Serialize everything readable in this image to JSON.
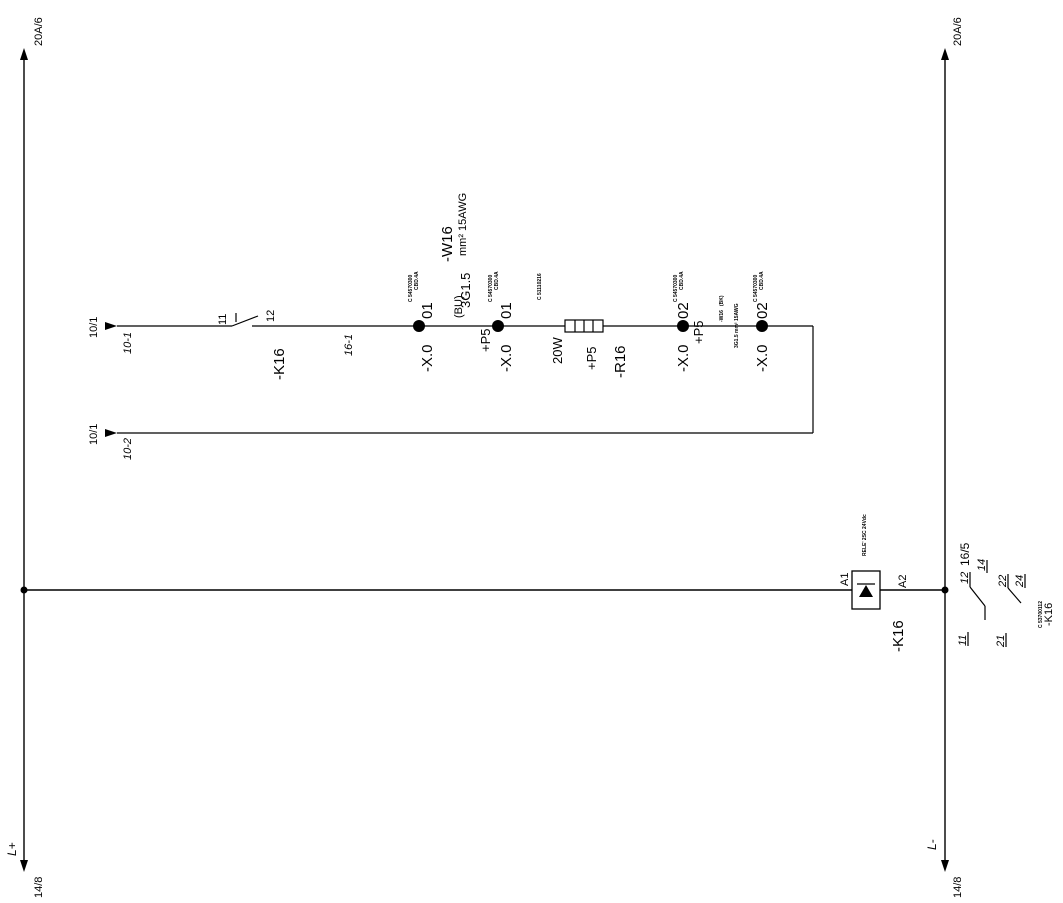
{
  "rails": {
    "left_top_ref": "20A/6",
    "left_bottom_ref": "14/8",
    "left_label": "L+",
    "right_top_ref": "20A/6",
    "right_bottom_ref": "14/8",
    "right_label": "L-"
  },
  "line_10_1": {
    "ref": "10/1",
    "wire": "10-1",
    "k16_contact_in": "11",
    "k16_contact_out": "12",
    "k16_tag": "-K16",
    "wire_16": "16-1"
  },
  "terminals": {
    "x001a": {
      "tag": "-X.0",
      "num": "01",
      "part": "C 54570300",
      "model": "CBD.4A"
    },
    "x001b": {
      "tag": "-X.0",
      "num": "01",
      "loc": "+P5",
      "part": "C 54570300",
      "model": "CBD.4A"
    },
    "x002a": {
      "tag": "-X.0",
      "num": "02",
      "loc": "+P5",
      "part": "C 54570300",
      "model": "CBD.4A"
    },
    "x002b": {
      "tag": "-X.0",
      "num": "02",
      "part": "C 54570300",
      "model": "CBD.4A"
    }
  },
  "cable_w16": {
    "tag": "-W16",
    "spec": "3G1.5",
    "unit": "mm² 15AWG",
    "color": "(BU)"
  },
  "cable_w16b": {
    "tag": "-W16",
    "color": "(BK)",
    "spec": "3G1.5  mm² 15AWG"
  },
  "resistor": {
    "tag": "-R16",
    "loc": "+P5",
    "power": "20W",
    "part": "C 51110216"
  },
  "line_10_2": {
    "ref": "10/1",
    "wire": "10-2"
  },
  "relay": {
    "tag": "-K16",
    "a1": "A1",
    "a2": "A2",
    "desc": "RELE' 2SC 24Vdc"
  },
  "contact_table": {
    "ref": "16/5",
    "c1_a": "12",
    "c1_b": "14",
    "c1_c": "11",
    "c2_a": "22",
    "c2_b": "24",
    "c2_c": "21",
    "part": "C 53700112",
    "tag": "-K16"
  }
}
